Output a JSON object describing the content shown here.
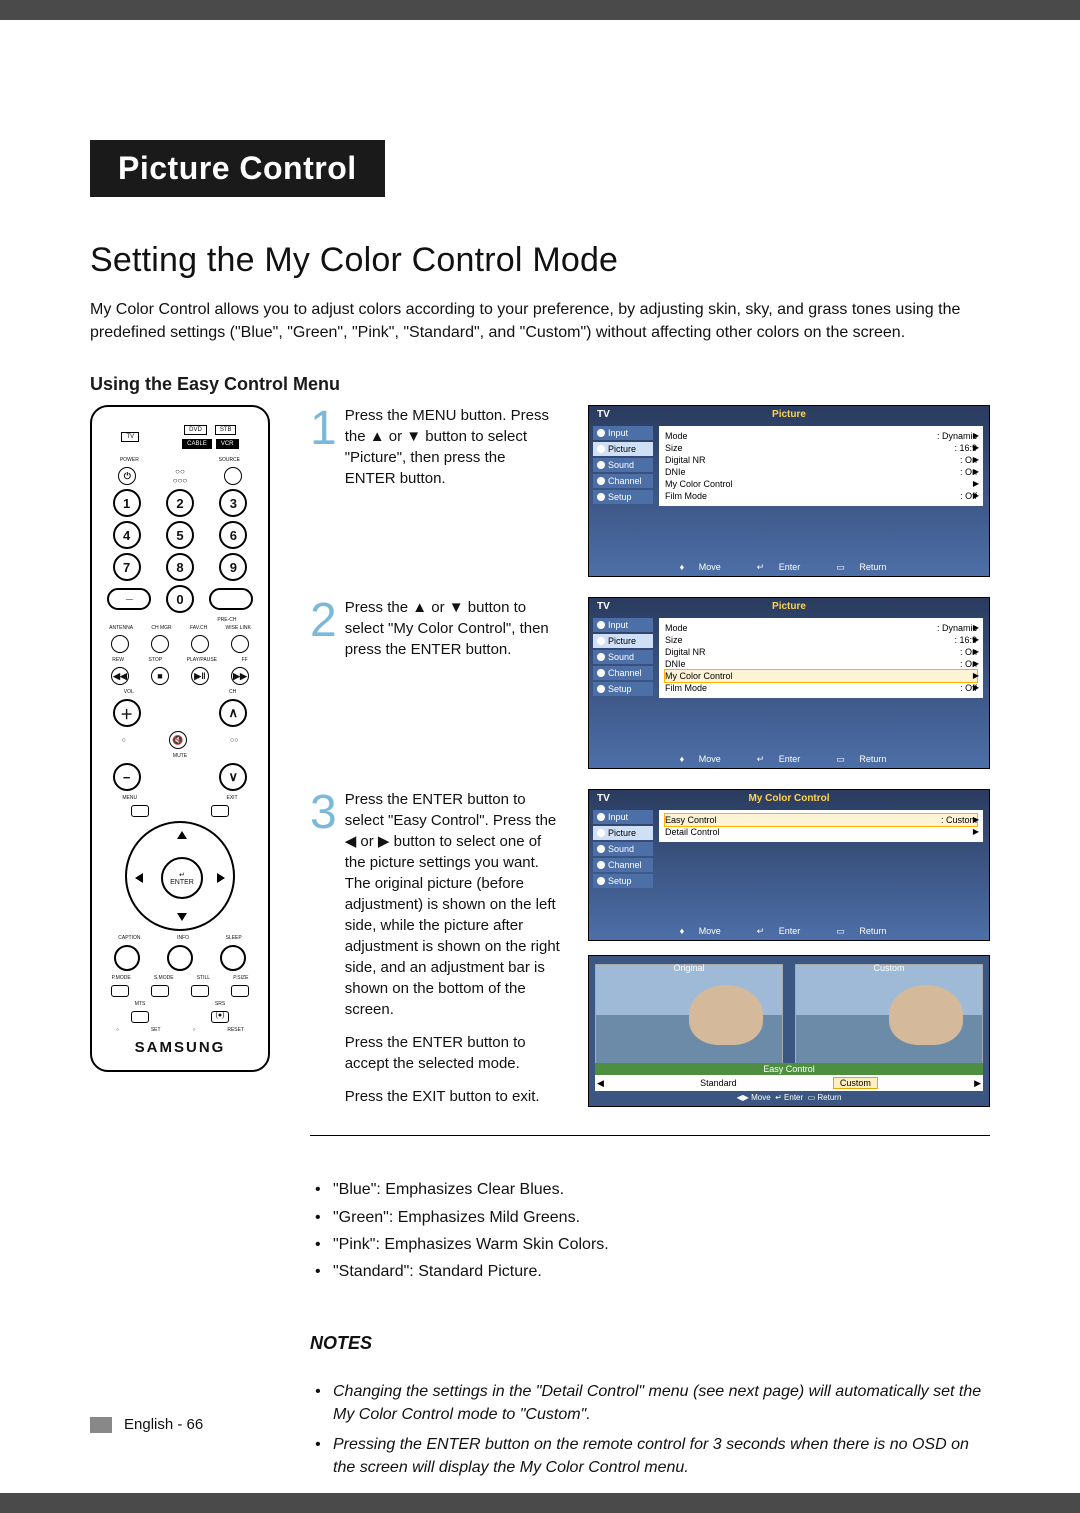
{
  "header": {
    "title": "Picture Control"
  },
  "section": {
    "heading": "Setting the My Color Control Mode"
  },
  "intro": "My Color Control allows you to adjust colors according to your preference, by adjusting skin, sky, and grass tones using the predefined settings (\"Blue\", \"Green\", \"Pink\", \"Standard\", and \"Custom\") without affecting other colors on the screen.",
  "subHeading": "Using the Easy Control Menu",
  "steps": {
    "s1": {
      "num": "1",
      "text": "Press the MENU button. Press the ▲ or ▼ button to select \"Picture\", then press the ENTER button."
    },
    "s2": {
      "num": "2",
      "text": "Press the ▲ or ▼ button to select \"My Color Control\", then press the ENTER button."
    },
    "s3": {
      "num": "3",
      "text1": "Press the ENTER button to select \"Easy Control\". Press the ◀ or ▶ button to select one of the picture settings you want. The original picture (before adjustment) is shown on the left side, while the picture after adjustment is shown on the right side, and an adjustment bar is shown on the bottom of the screen.",
      "text2": "Press the ENTER button to accept the selected mode.",
      "text3": "Press the EXIT button to exit."
    }
  },
  "osd": {
    "tv": "TV",
    "sidebar": [
      "Input",
      "Picture",
      "Sound",
      "Channel",
      "Setup"
    ],
    "footer": {
      "move": "Move",
      "enter": "Enter",
      "return": "Return"
    },
    "panel1": {
      "title": "Picture",
      "items": [
        {
          "k": "Mode",
          "v": ": Dynamic"
        },
        {
          "k": "Size",
          "v": ": 16:9"
        },
        {
          "k": "Digital NR",
          "v": ": On"
        },
        {
          "k": "DNIe",
          "v": ": On"
        },
        {
          "k": "My Color Control",
          "v": ""
        },
        {
          "k": "Film Mode",
          "v": ": Off"
        }
      ],
      "selected": 1
    },
    "panel2": {
      "title": "Picture",
      "items": [
        {
          "k": "Mode",
          "v": ": Dynamic"
        },
        {
          "k": "Size",
          "v": ": 16:9"
        },
        {
          "k": "Digital NR",
          "v": ": On"
        },
        {
          "k": "DNIe",
          "v": ": On"
        },
        {
          "k": "My Color Control",
          "v": ""
        },
        {
          "k": "Film Mode",
          "v": ": Off"
        }
      ],
      "highlight": 4,
      "selected": 1
    },
    "panel3": {
      "title": "My Color Control",
      "items": [
        {
          "k": "Easy Control",
          "v": ": Custom"
        },
        {
          "k": "Detail Control",
          "v": ""
        }
      ],
      "highlight": 0,
      "selected": 1
    }
  },
  "preview": {
    "left": "Original",
    "right": "Custom",
    "barTitle": "Easy Control",
    "ctrlLeft": "Standard",
    "ctrlRight": "Custom",
    "foot": {
      "move": "Move",
      "enter": "Enter",
      "return": "Return"
    }
  },
  "bullets": [
    "\"Blue\": Emphasizes Clear Blues.",
    "\"Green\": Emphasizes Mild Greens.",
    "\"Pink\": Emphasizes Warm Skin Colors.",
    "\"Standard\": Standard Picture."
  ],
  "notesHeading": "NOTES",
  "notes": [
    "Changing the settings in the \"Detail Control\" menu (see next page) will automatically set the My Color Control mode to \"Custom\".",
    "Pressing the ENTER button on the remote control for 3 seconds when there is no OSD on the screen will display the My Color Control menu."
  ],
  "footer": "English - 66",
  "remote": {
    "src": [
      "DVD",
      "STB",
      "CABLE",
      "VCR"
    ],
    "tv": "TV",
    "power": "POWER",
    "source": "SOURCE",
    "keys": [
      "1",
      "2",
      "3",
      "4",
      "5",
      "6",
      "7",
      "8",
      "9",
      "0"
    ],
    "dash": "—",
    "prech": "PRE-CH",
    "row1": [
      "ANTENNA",
      "CH MGR",
      "FAV.CH",
      "WISE LINK"
    ],
    "row2": [
      "REW",
      "STOP",
      "PLAY/PAUSE",
      "FF"
    ],
    "vol": "VOL",
    "ch": "CH",
    "mute": "MUTE",
    "menu": "MENU",
    "exit": "EXIT",
    "enter": "ENTER",
    "row3": [
      "CAPTION",
      "INFO",
      "SLEEP"
    ],
    "row4": [
      "P.MODE",
      "S.MODE",
      "STILL",
      "P.SIZE"
    ],
    "row5": [
      "MTS",
      "SRS"
    ],
    "row6": [
      "SET",
      "RESET"
    ],
    "brand": "SAMSUNG"
  },
  "arrows": {
    "up": "▲",
    "down": "▼",
    "left": "◀",
    "right": "▶"
  }
}
